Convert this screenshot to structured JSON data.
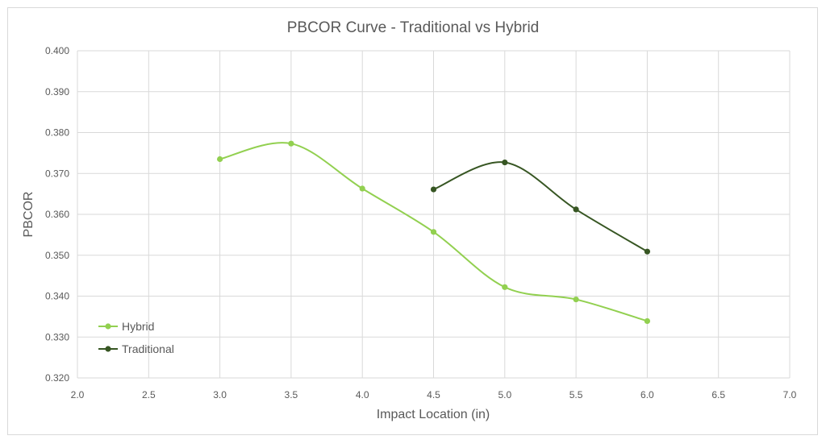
{
  "chart_data": {
    "type": "line",
    "title": "PBCOR Curve - Traditional vs Hybrid",
    "xlabel": "Impact Location (in)",
    "ylabel": "PBCOR",
    "xlim": [
      2.0,
      7.0
    ],
    "ylim": [
      0.32,
      0.4
    ],
    "x_ticks": [
      "2.0",
      "2.5",
      "3.0",
      "3.5",
      "4.0",
      "4.5",
      "5.0",
      "5.5",
      "6.0",
      "6.5",
      "7.0"
    ],
    "y_ticks": [
      "0.320",
      "0.330",
      "0.340",
      "0.350",
      "0.360",
      "0.370",
      "0.380",
      "0.390",
      "0.400"
    ],
    "grid": true,
    "smooth": true,
    "legend_position": "bottom-left",
    "series": [
      {
        "name": "Hybrid",
        "color": "#92d050",
        "x": [
          3.0,
          3.5,
          4.0,
          4.5,
          5.0,
          5.5,
          6.0
        ],
        "y": [
          0.3735,
          0.3773,
          0.3663,
          0.3557,
          0.3422,
          0.3392,
          0.3339
        ]
      },
      {
        "name": "Traditional",
        "color": "#375623",
        "x": [
          4.5,
          5.0,
          5.5,
          6.0
        ],
        "y": [
          0.3661,
          0.3727,
          0.3612,
          0.3509
        ]
      }
    ]
  }
}
